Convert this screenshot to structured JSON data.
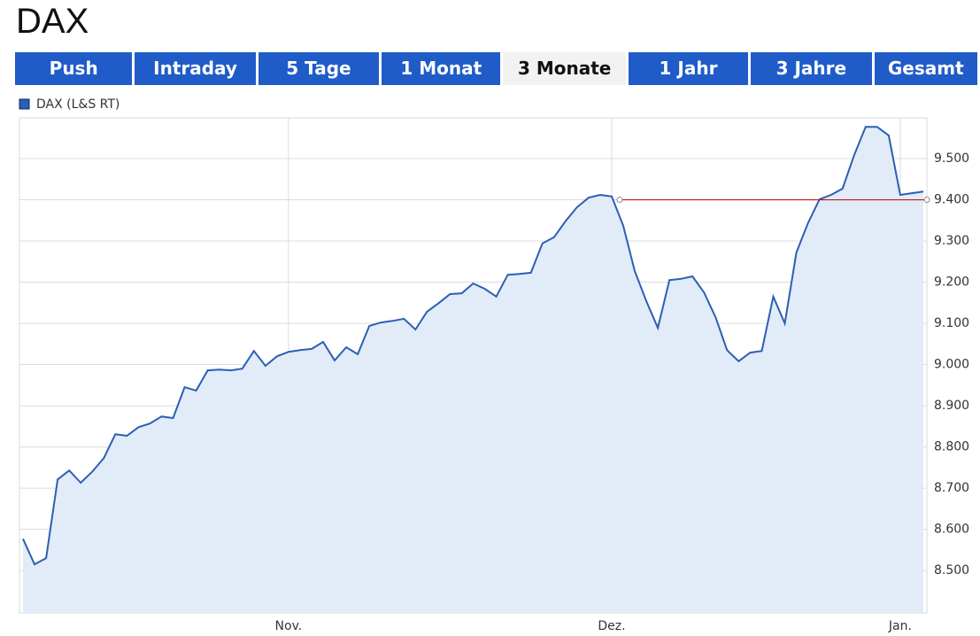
{
  "page": {
    "title": "DAX",
    "tabs": [
      "Push",
      "Intraday",
      "5 Tage",
      "1 Monat",
      "3 Monate",
      "1 Jahr",
      "3 Jahre",
      "Gesamt"
    ],
    "active_tab": 4
  },
  "chart_data": {
    "type": "area",
    "categories": [
      null,
      null,
      null,
      null,
      null,
      null,
      null,
      null,
      null,
      null,
      null,
      null,
      null,
      null,
      null,
      null,
      null,
      null,
      null,
      null,
      null,
      null,
      null,
      "Nov.",
      null,
      null,
      null,
      null,
      null,
      null,
      null,
      null,
      null,
      null,
      null,
      null,
      null,
      null,
      null,
      null,
      null,
      null,
      null,
      null,
      null,
      null,
      null,
      null,
      null,
      null,
      null,
      "Dez.",
      null,
      null,
      null,
      null,
      null,
      null,
      null,
      null,
      null,
      null,
      null,
      null,
      null,
      null,
      null,
      null,
      null,
      null,
      null,
      null,
      null,
      null,
      null,
      null,
      "Jan.",
      null,
      null
    ],
    "series": [
      {
        "name": "DAX (L&S RT)",
        "color": "#2b5fb3",
        "fill": "#e2ebf8",
        "values": [
          8577,
          8515,
          8530,
          8721,
          8743,
          8713,
          8740,
          8773,
          8831,
          8827,
          8848,
          8857,
          8874,
          8870,
          8945,
          8937,
          8986,
          8988,
          8986,
          8990,
          9033,
          8997,
          9020,
          9031,
          9035,
          9038,
          9055,
          9010,
          9042,
          9025,
          9094,
          9102,
          9106,
          9111,
          9085,
          9128,
          9149,
          9171,
          9173,
          9197,
          9184,
          9165,
          9218,
          9220,
          9223,
          9294,
          9309,
          9348,
          9382,
          9405,
          9412,
          9408,
          9337,
          9227,
          9154,
          9089,
          9205,
          9208,
          9214,
          9175,
          9115,
          9035,
          9008,
          9029,
          9033,
          9165,
          9100,
          9272,
          9343,
          9401,
          9412,
          9427,
          9508,
          9577,
          9577,
          9556,
          9412,
          9416,
          9420
        ]
      }
    ],
    "ylim": [
      8397,
      9599
    ],
    "yticks": [
      {
        "value": 8500,
        "label": "8.500"
      },
      {
        "value": 8600,
        "label": "8.600"
      },
      {
        "value": 8700,
        "label": "8.700"
      },
      {
        "value": 8800,
        "label": "8.800"
      },
      {
        "value": 8900,
        "label": "8.900"
      },
      {
        "value": 9000,
        "label": "9.000"
      },
      {
        "value": 9100,
        "label": "9.100"
      },
      {
        "value": 9200,
        "label": "9.200"
      },
      {
        "value": 9300,
        "label": "9.300"
      },
      {
        "value": 9400,
        "label": "9.400"
      },
      {
        "value": 9500,
        "label": "9.500"
      }
    ],
    "grid": true,
    "legend": "top-left",
    "reference_line": {
      "value": 9400,
      "color": "#c0161b"
    }
  }
}
